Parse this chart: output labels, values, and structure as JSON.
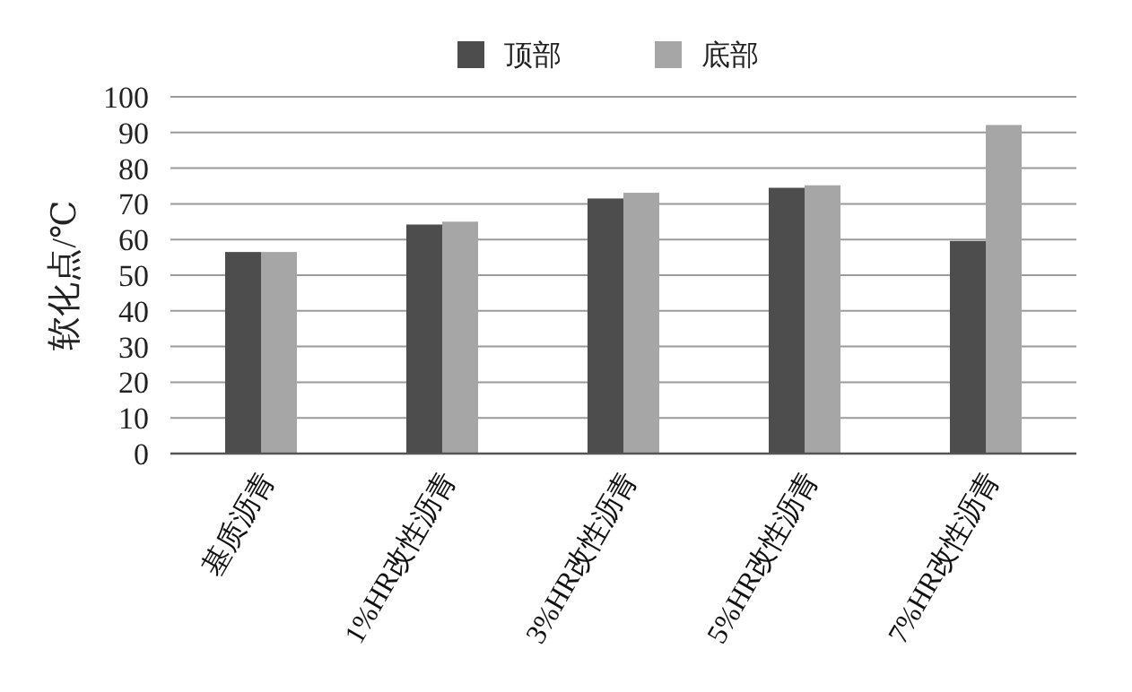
{
  "chart_data": {
    "type": "bar",
    "ylabel": "软化点/℃",
    "categories": [
      "基质沥青",
      "1%HR改性沥青",
      "3%HR改性沥青",
      "5%HR改性沥青",
      "7%HR改性沥青"
    ],
    "series": [
      {
        "name": "顶部",
        "color": "#4d4d4d",
        "values": [
          56.5,
          64.2,
          71.5,
          74.5,
          59.6
        ]
      },
      {
        "name": "底部",
        "color": "#a6a6a6",
        "values": [
          56.5,
          65.0,
          73.1,
          75.2,
          92.1
        ]
      }
    ],
    "ylim": [
      0,
      100
    ],
    "yticks": [
      0,
      10,
      20,
      30,
      40,
      50,
      60,
      70,
      80,
      90,
      100
    ],
    "grid": "y",
    "legend": "top"
  }
}
